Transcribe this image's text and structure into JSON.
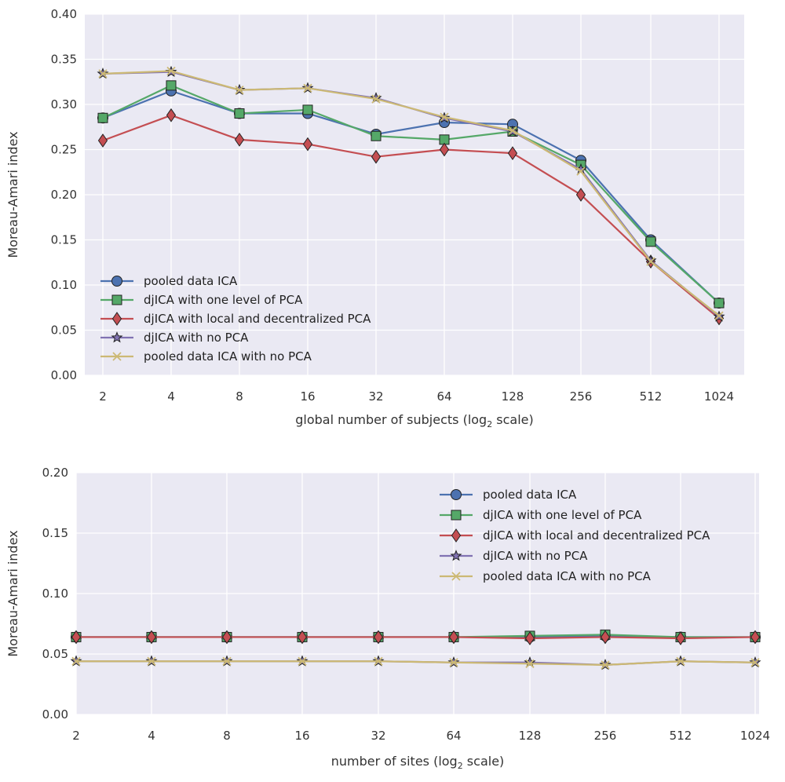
{
  "series_styles": [
    {
      "color": "#4c72b0",
      "marker": "circle"
    },
    {
      "color": "#55a868",
      "marker": "square"
    },
    {
      "color": "#c44e52",
      "marker": "diamond"
    },
    {
      "color": "#8172b2",
      "marker": "star"
    },
    {
      "color": "#ccb974",
      "marker": "x"
    }
  ],
  "chart_data": [
    {
      "type": "line",
      "x": [
        "2",
        "4",
        "8",
        "16",
        "32",
        "64",
        "128",
        "256",
        "512",
        "1024"
      ],
      "xlabel": "global number of subjects (log",
      "xlabel_sub": "2",
      "xlabel_end": " scale)",
      "ylabel": "Moreau-Amari index",
      "ylim": [
        0,
        0.4
      ],
      "yticks": [
        "0.00",
        "0.05",
        "0.10",
        "0.15",
        "0.20",
        "0.25",
        "0.30",
        "0.35",
        "0.40"
      ],
      "grid": true,
      "legend_position": "lower-left",
      "series": [
        {
          "name": "pooled data ICA",
          "values": [
            0.285,
            0.315,
            0.29,
            0.29,
            0.267,
            0.28,
            0.278,
            0.238,
            0.15,
            0.08
          ]
        },
        {
          "name": "djICA with one level of PCA",
          "values": [
            0.285,
            0.321,
            0.29,
            0.294,
            0.265,
            0.261,
            0.27,
            0.233,
            0.148,
            0.08
          ]
        },
        {
          "name": "djICA with local and decentralized PCA",
          "values": [
            0.26,
            0.288,
            0.261,
            0.256,
            0.242,
            0.25,
            0.246,
            0.2,
            0.126,
            0.063
          ]
        },
        {
          "name": "djICA with no PCA",
          "values": [
            0.334,
            0.336,
            0.316,
            0.318,
            0.307,
            0.285,
            0.27,
            0.228,
            0.127,
            0.065
          ]
        },
        {
          "name": "pooled data ICA with no PCA",
          "values": [
            0.334,
            0.337,
            0.316,
            0.318,
            0.306,
            0.286,
            0.271,
            0.226,
            0.126,
            0.066
          ]
        }
      ]
    },
    {
      "type": "line",
      "x": [
        "2",
        "4",
        "8",
        "16",
        "32",
        "64",
        "128",
        "256",
        "512",
        "1024"
      ],
      "xlabel": "number of sites (log",
      "xlabel_sub": "2",
      "xlabel_end": " scale)",
      "ylabel": "Moreau-Amari index",
      "ylim": [
        0,
        0.2
      ],
      "yticks": [
        "0.00",
        "0.05",
        "0.10",
        "0.15",
        "0.20"
      ],
      "grid": true,
      "legend_position": "upper-right",
      "series": [
        {
          "name": "pooled data ICA",
          "values": [
            0.064,
            0.064,
            0.064,
            0.064,
            0.064,
            0.064,
            0.064,
            0.065,
            0.064,
            0.064
          ]
        },
        {
          "name": "djICA with one level of PCA",
          "values": [
            0.064,
            0.064,
            0.064,
            0.064,
            0.064,
            0.064,
            0.065,
            0.066,
            0.064,
            0.064
          ]
        },
        {
          "name": "djICA with local and decentralized PCA",
          "values": [
            0.064,
            0.064,
            0.064,
            0.064,
            0.064,
            0.064,
            0.063,
            0.064,
            0.063,
            0.064
          ]
        },
        {
          "name": "djICA with no PCA",
          "values": [
            0.044,
            0.044,
            0.044,
            0.044,
            0.044,
            0.043,
            0.043,
            0.041,
            0.044,
            0.043
          ]
        },
        {
          "name": "pooled data ICA with no PCA",
          "values": [
            0.044,
            0.044,
            0.044,
            0.044,
            0.044,
            0.043,
            0.042,
            0.041,
            0.044,
            0.043
          ]
        }
      ]
    }
  ]
}
